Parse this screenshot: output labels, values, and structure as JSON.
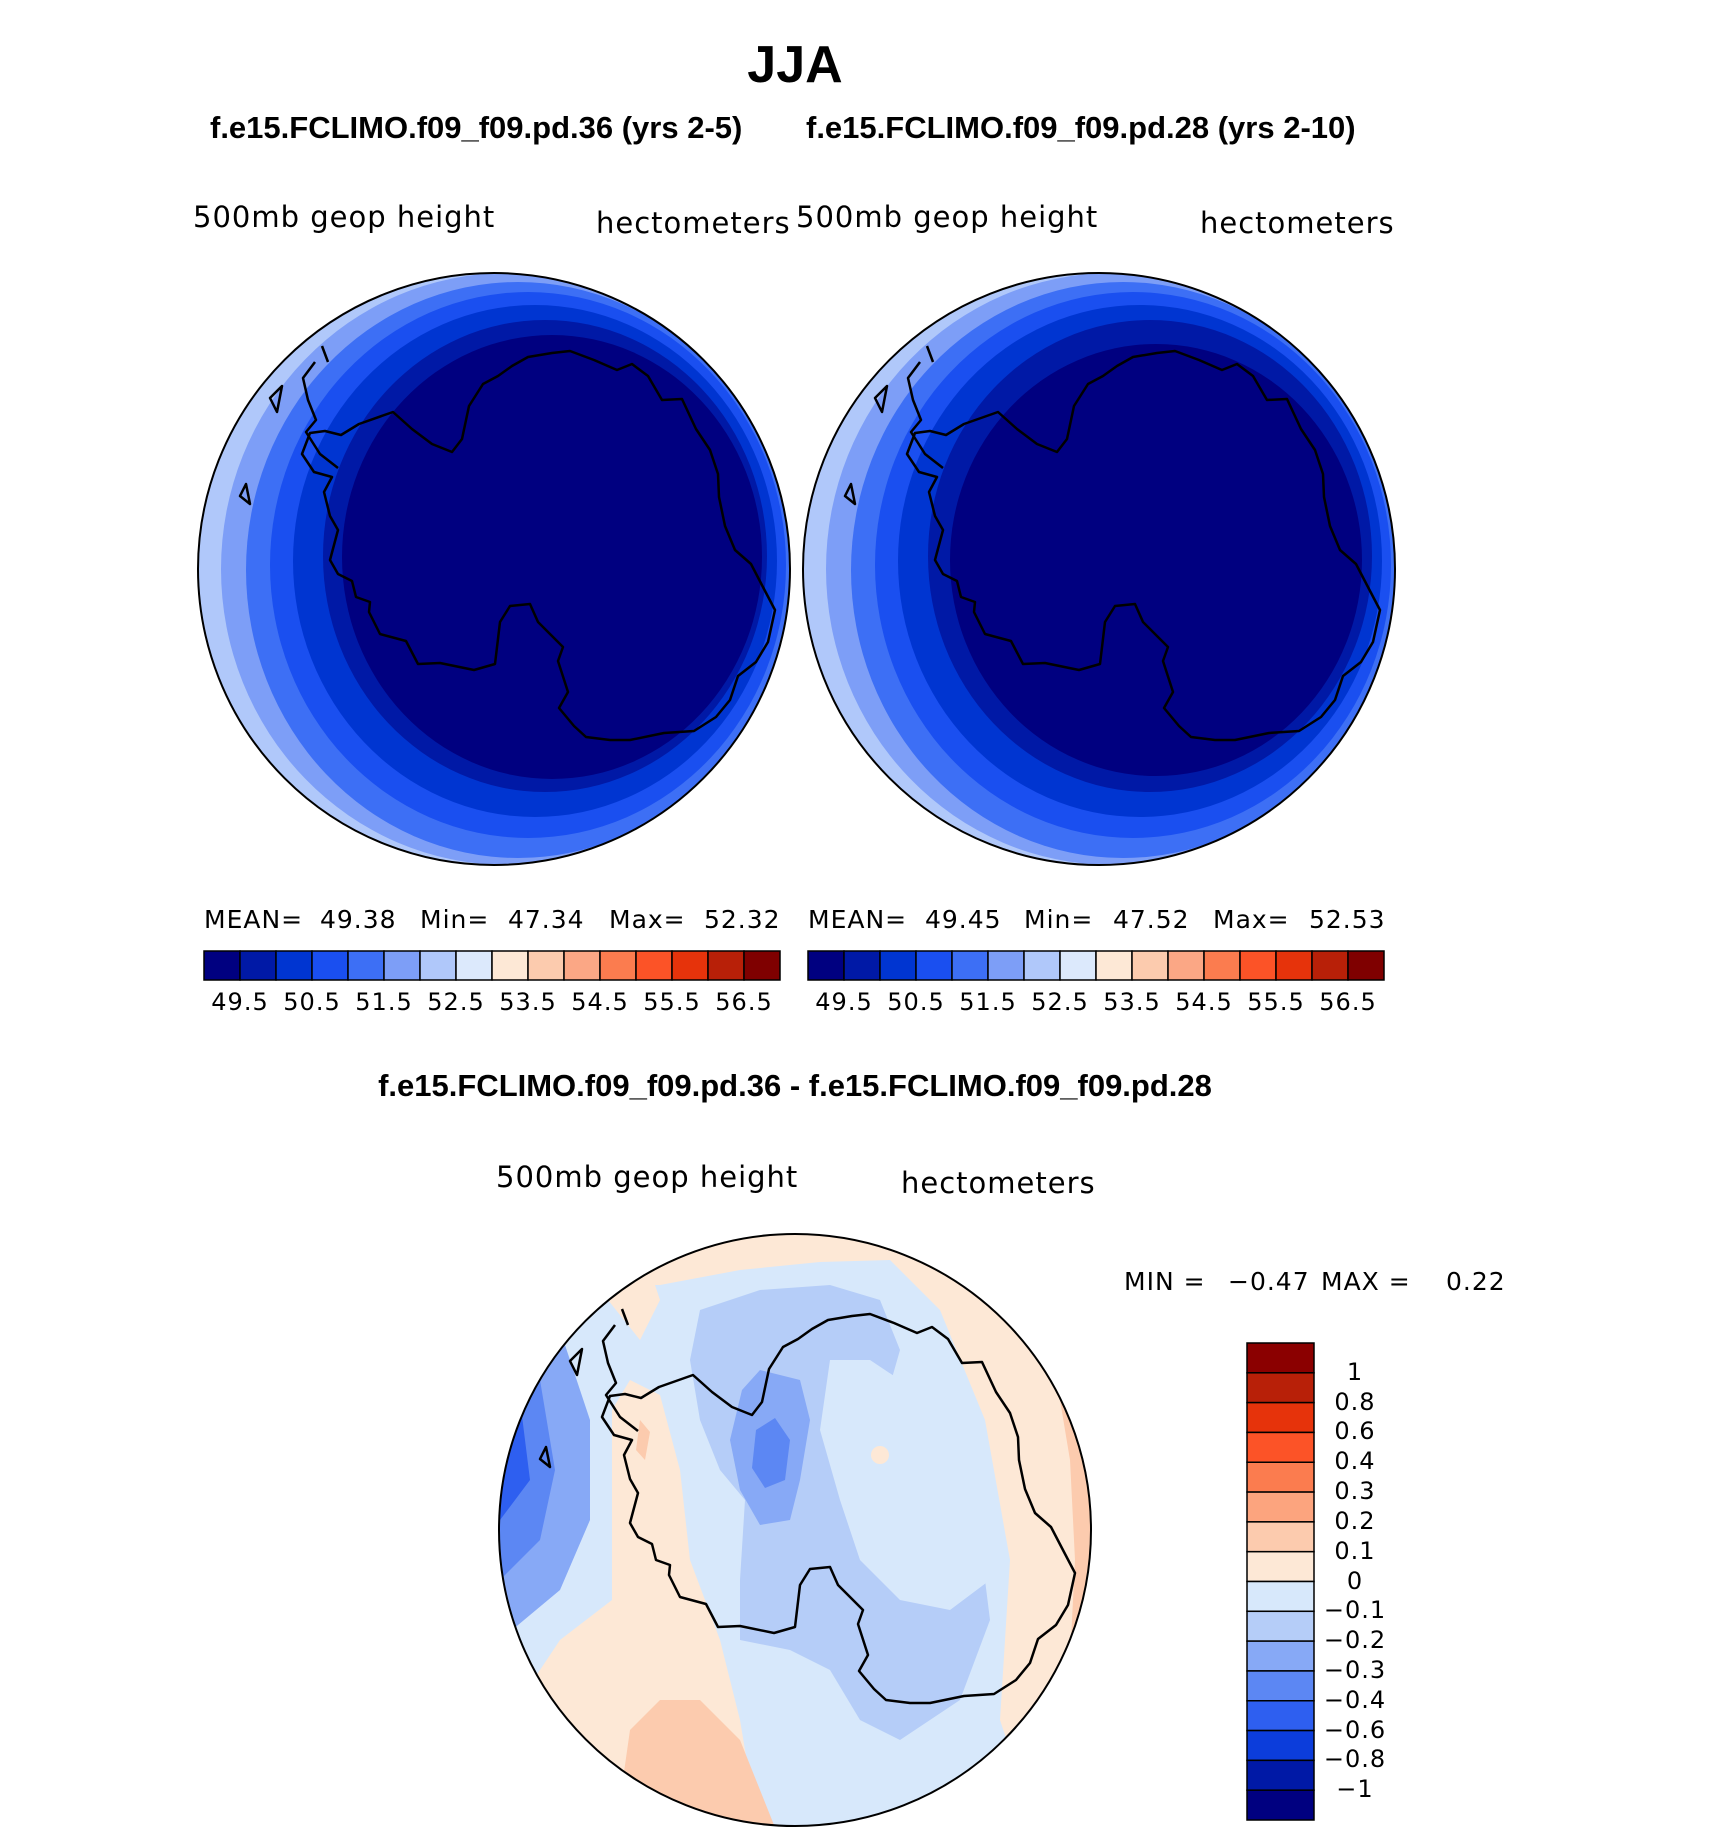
{
  "title": "JJA",
  "case1": {
    "title": "f.e15.FCLIMO.f09_f09.pd.36 (yrs 2-5)",
    "variable": "500mb  geop  height",
    "units": "hectometers",
    "stats": {
      "mean_label": "MEAN=",
      "mean": "49.38",
      "min_label": "Min=",
      "min": "47.34",
      "max_label": "Max=",
      "max": "52.32"
    }
  },
  "case2": {
    "title": "f.e15.FCLIMO.f09_f09.pd.28 (yrs 2-10)",
    "variable": "500mb  geop  height",
    "units": "hectometers",
    "stats": {
      "mean_label": "MEAN=",
      "mean": "49.45",
      "min_label": "Min=",
      "min": "47.52",
      "max_label": "Max=",
      "max": "52.53"
    }
  },
  "diff": {
    "title": "f.e15.FCLIMO.f09_f09.pd.36 - f.e15.FCLIMO.f09_f09.pd.28",
    "variable": "500mb  geop  height",
    "units": "hectometers",
    "min_label": "MIN =",
    "min": "−0.47",
    "max_label": "MAX =",
    "max": "0.22"
  },
  "colorbar_abs": {
    "colors": [
      "#000080",
      "#0019a6",
      "#0035d1",
      "#1a4ff0",
      "#3d6ff5",
      "#7d9ef7",
      "#b0c8fa",
      "#dce9fc",
      "#fde8d6",
      "#fccbae",
      "#fba785",
      "#fb7c4f",
      "#fc5327",
      "#e6330b",
      "#b82008",
      "#7f0000"
    ],
    "labels": [
      "49.5",
      "50.5",
      "51.5",
      "52.5",
      "53.5",
      "54.5",
      "55.5",
      "56.5"
    ]
  },
  "colorbar_diff": {
    "colors_top_to_bottom": [
      "#8b0000",
      "#b82008",
      "#e6330b",
      "#fc5327",
      "#fb7c4f",
      "#fca47e",
      "#fccbae",
      "#fde8d6",
      "#d7e8fb",
      "#b5cdf8",
      "#87a9f6",
      "#5c87f3",
      "#2e5ff0",
      "#0c3ddb",
      "#0019a6",
      "#000080"
    ],
    "labels": [
      "1",
      "0.8",
      "0.6",
      "0.4",
      "0.3",
      "0.2",
      "0.1",
      "0",
      "−0.1",
      "−0.2",
      "−0.3",
      "−0.4",
      "−0.6",
      "−0.8",
      "−1"
    ]
  },
  "map_colors": {
    "ring1": "#b0c8fa",
    "ring2": "#7d9ef7",
    "ring3": "#3d6ff5",
    "ring4": "#1a4ff0",
    "ring5": "#0035d1",
    "ring6": "#0019a6",
    "core": "#000080",
    "diff_pos1": "#fde8d6",
    "diff_pos2": "#fccbae",
    "diff_neg1": "#d7e8fb",
    "diff_neg2": "#b5cdf8",
    "diff_neg3": "#87a9f6",
    "diff_neg4": "#5c87f3",
    "diff_neg5": "#2e5ff0",
    "coast": "#000000"
  }
}
